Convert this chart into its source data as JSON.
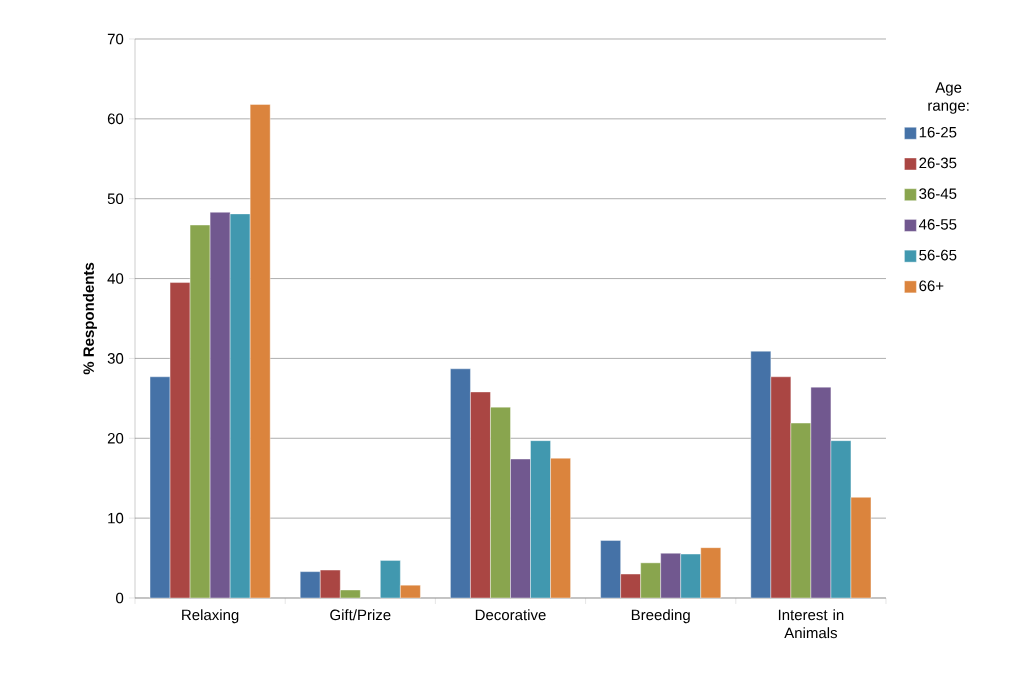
{
  "chart_data": {
    "type": "bar",
    "ylabel": "% Respondents",
    "legend_title": "Age range:",
    "categories": [
      "Relaxing",
      "Gift/Prize",
      "Decorative",
      "Breeding",
      "Interest in Animals"
    ],
    "series": [
      {
        "name": "16-25",
        "color": "#4572a7",
        "values": [
          27.7,
          3.3,
          28.7,
          7.2,
          30.9
        ]
      },
      {
        "name": "26-35",
        "color": "#aa4643",
        "values": [
          39.5,
          3.5,
          25.8,
          3.0,
          27.7
        ]
      },
      {
        "name": "36-45",
        "color": "#89a54e",
        "values": [
          46.7,
          1.0,
          23.9,
          4.4,
          21.9
        ]
      },
      {
        "name": "46-55",
        "color": "#71588f",
        "values": [
          48.3,
          null,
          17.4,
          5.6,
          26.4
        ]
      },
      {
        "name": "56-65",
        "color": "#4198af",
        "values": [
          48.1,
          4.7,
          19.7,
          5.5,
          19.7
        ]
      },
      {
        "name": "66+",
        "color": "#db843d",
        "values": [
          61.8,
          1.6,
          17.5,
          6.3,
          12.6
        ]
      }
    ],
    "ylim": [
      0,
      70
    ],
    "yticks": [
      0,
      10,
      20,
      30,
      40,
      50,
      60,
      70
    ],
    "grid": "y",
    "legend": "right"
  }
}
